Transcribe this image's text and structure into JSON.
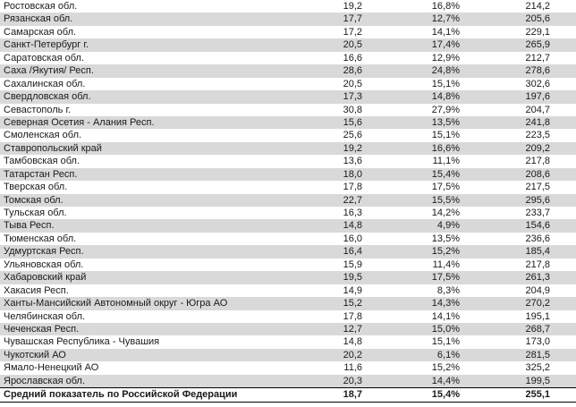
{
  "table": {
    "columns": [
      "region",
      "value1",
      "percent",
      "value2"
    ],
    "rows": [
      {
        "region": "Ростовская обл.",
        "value1": "19,2",
        "percent": "16,8%",
        "value2": "214,2"
      },
      {
        "region": "Рязанская обл.",
        "value1": "17,7",
        "percent": "12,7%",
        "value2": "205,6"
      },
      {
        "region": "Самарская обл.",
        "value1": "17,2",
        "percent": "14,1%",
        "value2": "229,1"
      },
      {
        "region": "Санкт-Петербург г.",
        "value1": "20,5",
        "percent": "17,4%",
        "value2": "265,9"
      },
      {
        "region": "Саратовская обл.",
        "value1": "16,6",
        "percent": "12,9%",
        "value2": "212,7"
      },
      {
        "region": "Саха /Якутия/ Респ.",
        "value1": "28,6",
        "percent": "24,8%",
        "value2": "278,6"
      },
      {
        "region": "Сахалинская обл.",
        "value1": "20,5",
        "percent": "15,1%",
        "value2": "302,6"
      },
      {
        "region": "Свердловская обл.",
        "value1": "17,3",
        "percent": "14,8%",
        "value2": "197,6"
      },
      {
        "region": "Севастополь г.",
        "value1": "30,8",
        "percent": "27,9%",
        "value2": "204,7"
      },
      {
        "region": "Северная Осетия - Алания Респ.",
        "value1": "15,6",
        "percent": "13,5%",
        "value2": "241,8"
      },
      {
        "region": "Смоленская обл.",
        "value1": "25,6",
        "percent": "15,1%",
        "value2": "223,5"
      },
      {
        "region": "Ставропольский край",
        "value1": "19,2",
        "percent": "16,6%",
        "value2": "209,2"
      },
      {
        "region": "Тамбовская обл.",
        "value1": "13,6",
        "percent": "11,1%",
        "value2": "217,8"
      },
      {
        "region": "Татарстан Респ.",
        "value1": "18,0",
        "percent": "15,4%",
        "value2": "208,6"
      },
      {
        "region": "Тверская обл.",
        "value1": "17,8",
        "percent": "17,5%",
        "value2": "217,5"
      },
      {
        "region": "Томская обл.",
        "value1": "22,7",
        "percent": "15,5%",
        "value2": "295,6"
      },
      {
        "region": "Тульская обл.",
        "value1": "16,3",
        "percent": "14,2%",
        "value2": "233,7"
      },
      {
        "region": "Тыва Респ.",
        "value1": "14,8",
        "percent": "4,9%",
        "value2": "154,6"
      },
      {
        "region": "Тюменская обл.",
        "value1": "16,0",
        "percent": "13,5%",
        "value2": "236,6"
      },
      {
        "region": "Удмуртская Респ.",
        "value1": "16,4",
        "percent": "15,2%",
        "value2": "185,4"
      },
      {
        "region": "Ульяновская обл.",
        "value1": "15,9",
        "percent": "11,4%",
        "value2": "217,8"
      },
      {
        "region": "Хабаровский край",
        "value1": "19,5",
        "percent": "17,5%",
        "value2": "261,3"
      },
      {
        "region": "Хакасия Респ.",
        "value1": "14,9",
        "percent": "8,3%",
        "value2": "204,9"
      },
      {
        "region": "Ханты-Мансийский Автономный округ - Югра АО",
        "value1": "15,2",
        "percent": "14,3%",
        "value2": "270,2"
      },
      {
        "region": "Челябинская обл.",
        "value1": "17,8",
        "percent": "14,1%",
        "value2": "195,1"
      },
      {
        "region": "Чеченская Респ.",
        "value1": "12,7",
        "percent": "15,0%",
        "value2": "268,7"
      },
      {
        "region": "Чувашская Республика - Чувашия",
        "value1": "14,8",
        "percent": "15,1%",
        "value2": "173,0"
      },
      {
        "region": "Чукотский АО",
        "value1": "20,2",
        "percent": "6,1%",
        "value2": "281,5"
      },
      {
        "region": "Ямало-Ненецкий АО",
        "value1": "11,6",
        "percent": "15,2%",
        "value2": "325,2"
      },
      {
        "region": "Ярославская обл.",
        "value1": "20,3",
        "percent": "14,4%",
        "value2": "199,5"
      }
    ],
    "summary": {
      "region": "Средний показатель по Российской Федерации",
      "value1": "18,7",
      "percent": "15,4%",
      "value2": "255,1"
    }
  },
  "colors": {
    "background": "#ffffff",
    "stripe": "#d9d9d9",
    "text": "#1a1a1a",
    "summary_border": "#000000"
  }
}
